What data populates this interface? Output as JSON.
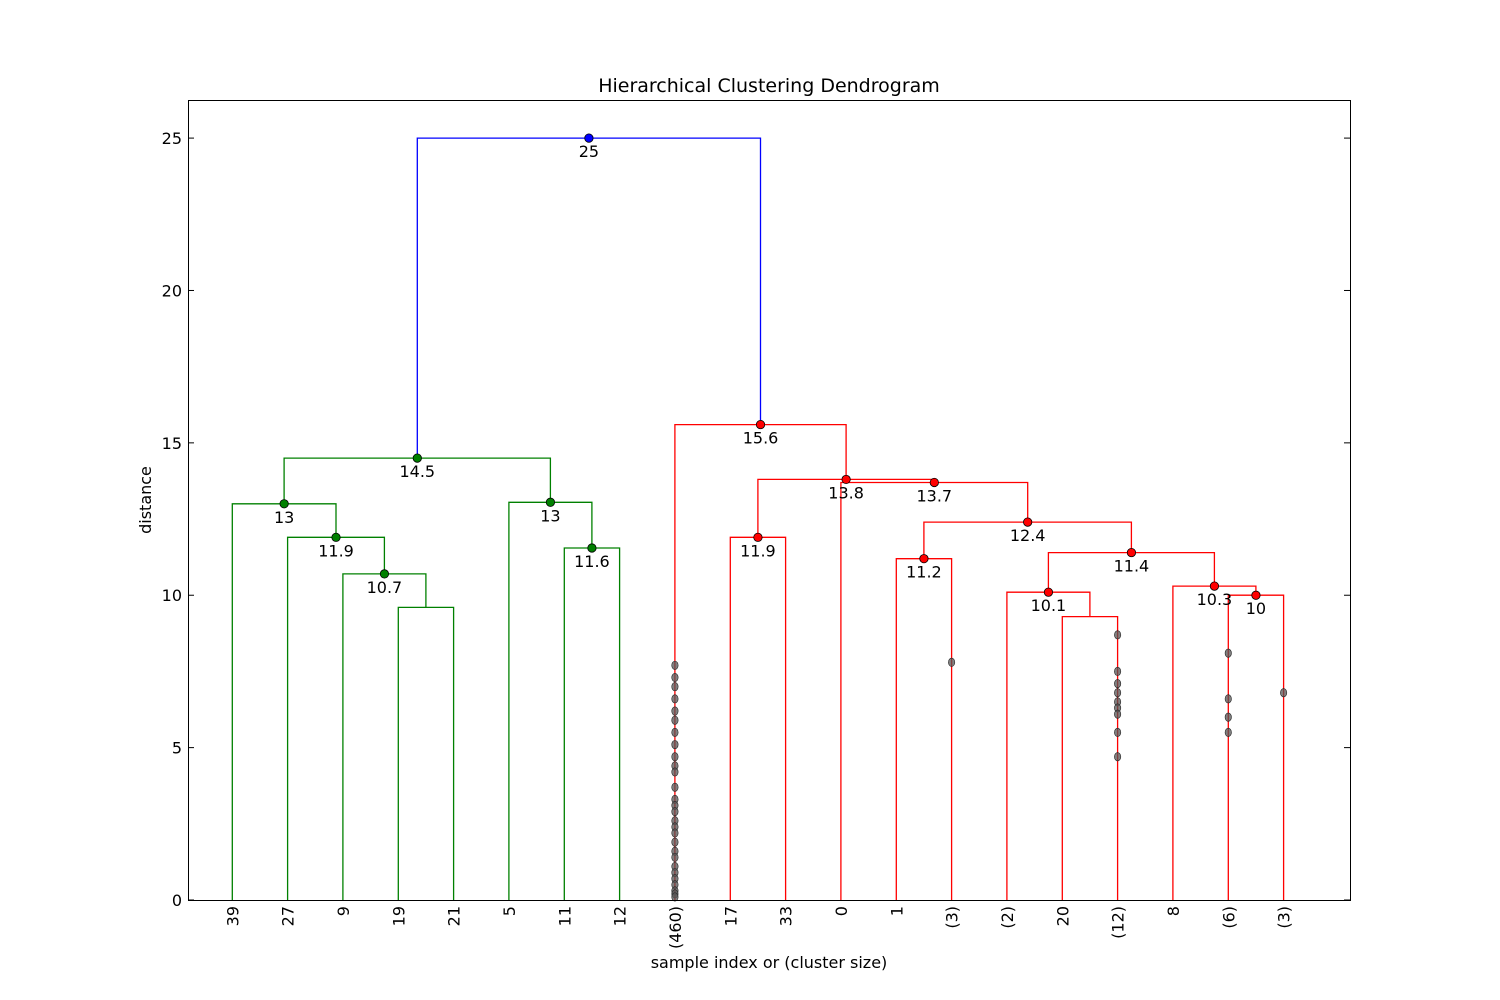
{
  "chart_data": {
    "type": "dendrogram",
    "title": "Hierarchical Clustering Dendrogram",
    "xlabel": "sample index or (cluster size)",
    "ylabel": "distance",
    "ylim": [
      0,
      26.25
    ],
    "yticks": [
      0,
      5,
      10,
      15,
      20,
      25
    ],
    "grid": false,
    "leaves": [
      "39",
      "27",
      "9",
      "19",
      "21",
      "5",
      "11",
      "12",
      "(460)",
      "17",
      "33",
      "0",
      "1",
      "(3)",
      "(2)",
      "20",
      "(12)",
      "8",
      "(6)",
      "(3)"
    ],
    "colors": {
      "green": "#008000",
      "red": "#ff0000",
      "blue": "#0000ff",
      "dot_dark": "#555555"
    },
    "links": [
      {
        "left": 3,
        "right": 4,
        "height": 9.6,
        "color": "green"
      },
      {
        "left": 2,
        "right": "L0",
        "height": 10.7,
        "color": "green",
        "label": "10.7"
      },
      {
        "left": 1,
        "right": "L1",
        "height": 11.9,
        "color": "green",
        "label": "11.9"
      },
      {
        "left": 0,
        "right": "L2",
        "height": 13.0,
        "color": "green",
        "label": "13"
      },
      {
        "left": 6,
        "right": 7,
        "height": 11.55,
        "color": "green",
        "label": "11.6"
      },
      {
        "left": 5,
        "right": "L4",
        "height": 13.05,
        "color": "green",
        "label": "13"
      },
      {
        "left": "L3",
        "right": "L5",
        "height": 14.5,
        "color": "green",
        "label": "14.5"
      },
      {
        "left": 9,
        "right": 10,
        "height": 11.9,
        "color": "red",
        "label": "11.9"
      },
      {
        "left": 12,
        "right": 13,
        "height": 11.2,
        "color": "red",
        "label": "11.2"
      },
      {
        "left": 15,
        "right": 16,
        "height": 9.3,
        "color": "red"
      },
      {
        "left": 14,
        "right": "L9",
        "height": 10.1,
        "color": "red",
        "label": "10.1"
      },
      {
        "left": 18,
        "right": 19,
        "height": 10.0,
        "color": "red",
        "label": "10"
      },
      {
        "left": 17,
        "right": "L11",
        "height": 10.3,
        "color": "red",
        "label": "10.3"
      },
      {
        "left": "L10",
        "right": "L12",
        "height": 11.4,
        "color": "red",
        "label": "11.4"
      },
      {
        "left": "L8",
        "right": "L13",
        "height": 12.4,
        "color": "red",
        "label": "12.4"
      },
      {
        "left": 11,
        "right": "L14",
        "height": 13.7,
        "color": "red",
        "label": "13.7"
      },
      {
        "left": "L7",
        "right": "L15",
        "height": 13.8,
        "color": "red",
        "label": "13.8"
      },
      {
        "left": 8,
        "right": "L16",
        "height": 15.6,
        "color": "red",
        "label": "15.6"
      },
      {
        "left": "L6",
        "right": "L17",
        "height": 25.0,
        "color": "blue",
        "label": "25"
      }
    ],
    "truncated_points": [
      {
        "leaf": 8,
        "heights": [
          7.7,
          7.3,
          7.0,
          6.6,
          6.2,
          5.9,
          5.5,
          5.1,
          4.7,
          4.4,
          4.2,
          3.7,
          3.3,
          3.1,
          2.9,
          2.6,
          2.4,
          2.2,
          1.9,
          1.6,
          1.4,
          1.1,
          0.9,
          0.7,
          0.5,
          0.3,
          0.2,
          0.1
        ]
      },
      {
        "leaf": 13,
        "heights": [
          7.8
        ]
      },
      {
        "leaf": 16,
        "heights": [
          8.7,
          7.5,
          7.1,
          6.8,
          6.5,
          6.3,
          6.1,
          5.5,
          4.7
        ]
      },
      {
        "leaf": 18,
        "heights": [
          8.1,
          6.6,
          6.0,
          5.5
        ]
      },
      {
        "leaf": 19,
        "heights": [
          6.8
        ]
      }
    ]
  }
}
